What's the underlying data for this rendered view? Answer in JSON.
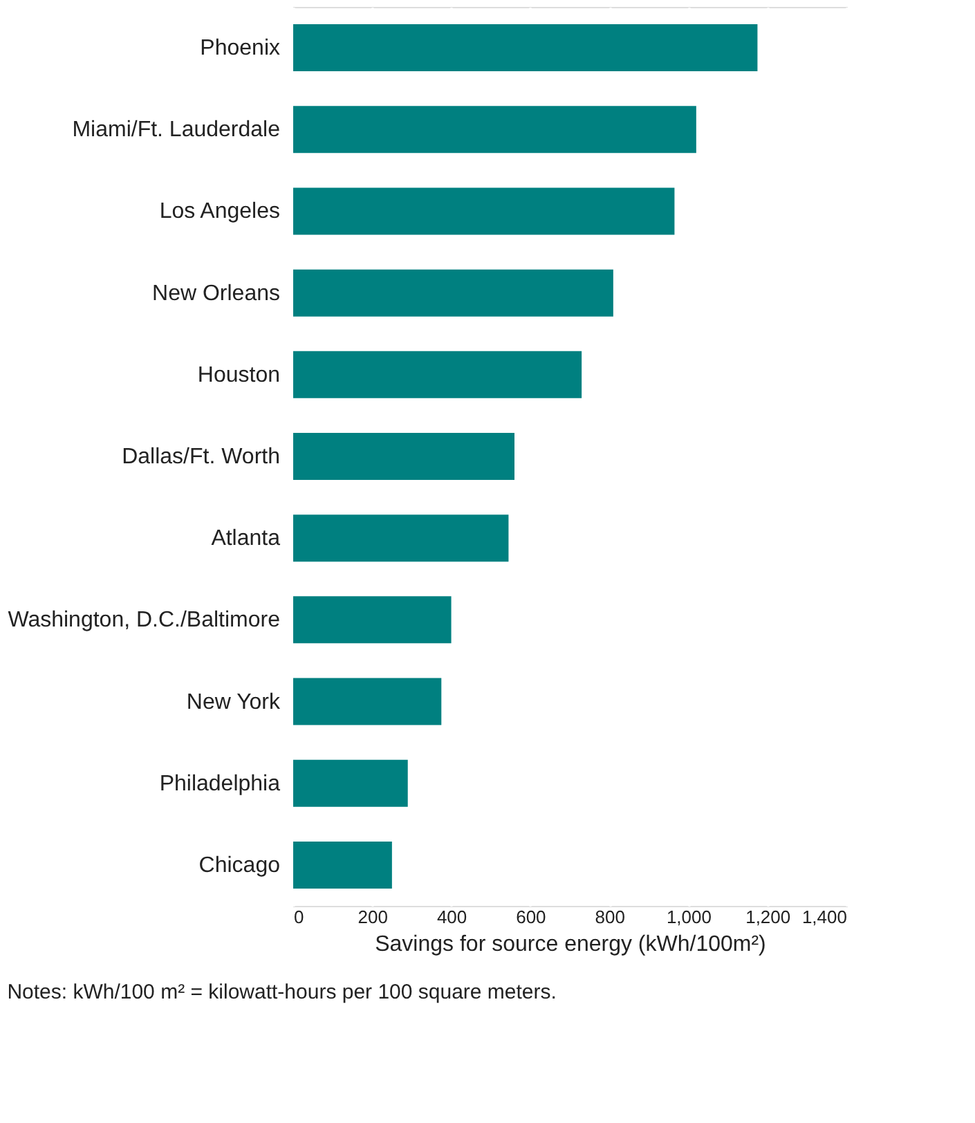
{
  "chart_data": {
    "type": "bar",
    "orientation": "horizontal",
    "xlabel": "Savings for source energy (kWh/100m²)",
    "categories": [
      "Phoenix",
      "Miami/Ft. Lauderdale",
      "Los Angeles",
      "New Orleans",
      "Houston",
      "Dallas/Ft. Worth",
      "Atlanta",
      "Washington, D.C./Baltimore",
      "New York",
      "Philadelphia",
      "Chicago"
    ],
    "values": [
      1175,
      1020,
      965,
      810,
      730,
      560,
      545,
      400,
      375,
      290,
      250
    ],
    "color": "#008080",
    "xlim": [
      0,
      1400
    ],
    "xticks": [
      0,
      200,
      400,
      600,
      800,
      {
        "value": 1000,
        "label": "1,000"
      },
      {
        "value": 1200,
        "label": "1,200"
      },
      {
        "value": 1400,
        "label": "1,400"
      }
    ],
    "grid": "x",
    "annotations": [
      "Notes: kWh/100 m² = kilowatt-hours per 100 square meters."
    ]
  }
}
